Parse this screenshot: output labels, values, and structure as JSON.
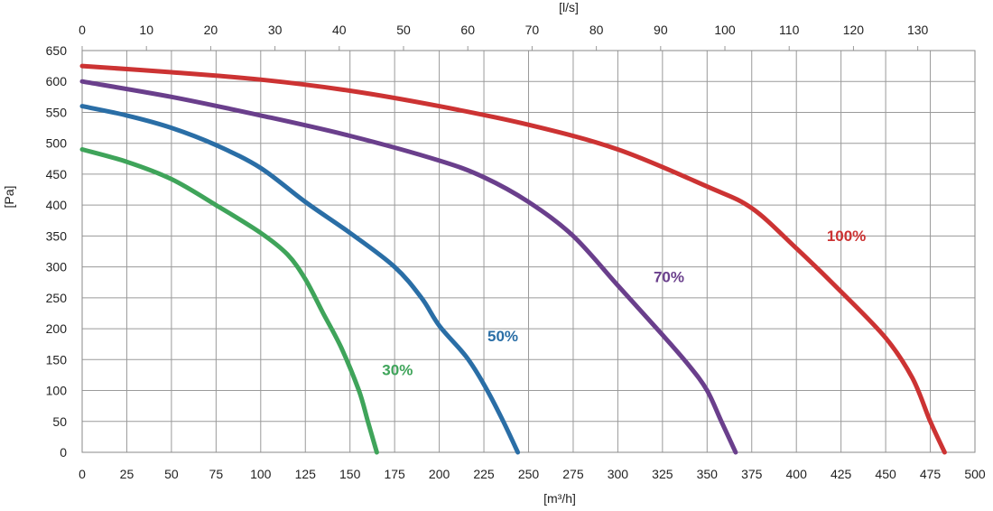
{
  "chart_data": {
    "type": "line",
    "xlabel": "[m³/h]",
    "x2label": "[l/s]",
    "ylabel": "[Pa]",
    "xlim": [
      0,
      500
    ],
    "x2lim": [
      0,
      138.9
    ],
    "ylim": [
      0,
      650
    ],
    "x_ticks": [
      0,
      25,
      50,
      75,
      100,
      125,
      150,
      175,
      200,
      225,
      250,
      275,
      300,
      325,
      350,
      375,
      400,
      425,
      450,
      475,
      500
    ],
    "x2_ticks": [
      0,
      10,
      20,
      30,
      40,
      50,
      60,
      70,
      80,
      90,
      100,
      110,
      120,
      130
    ],
    "y_ticks": [
      0,
      50,
      100,
      150,
      200,
      250,
      300,
      350,
      400,
      450,
      500,
      550,
      600,
      650
    ],
    "grid": true,
    "series": [
      {
        "name": "30%",
        "color": "#3fa45a",
        "points": [
          [
            0,
            490
          ],
          [
            25,
            470
          ],
          [
            50,
            442
          ],
          [
            75,
            400
          ],
          [
            100,
            355
          ],
          [
            115,
            320
          ],
          [
            125,
            280
          ],
          [
            135,
            225
          ],
          [
            145,
            170
          ],
          [
            155,
            100
          ],
          [
            160,
            50
          ],
          [
            165,
            0
          ]
        ]
      },
      {
        "name": "50%",
        "color": "#2a6ea6",
        "points": [
          [
            0,
            560
          ],
          [
            25,
            545
          ],
          [
            50,
            525
          ],
          [
            75,
            497
          ],
          [
            100,
            460
          ],
          [
            125,
            405
          ],
          [
            150,
            355
          ],
          [
            175,
            300
          ],
          [
            190,
            250
          ],
          [
            200,
            205
          ],
          [
            215,
            155
          ],
          [
            225,
            110
          ],
          [
            235,
            55
          ],
          [
            244,
            0
          ]
        ]
      },
      {
        "name": "70%",
        "color": "#6a3f8c",
        "points": [
          [
            0,
            600
          ],
          [
            50,
            575
          ],
          [
            100,
            545
          ],
          [
            150,
            512
          ],
          [
            200,
            472
          ],
          [
            225,
            445
          ],
          [
            250,
            405
          ],
          [
            275,
            350
          ],
          [
            300,
            270
          ],
          [
            325,
            190
          ],
          [
            340,
            140
          ],
          [
            350,
            100
          ],
          [
            358,
            50
          ],
          [
            366,
            0
          ]
        ]
      },
      {
        "name": "100%",
        "color": "#cc3333",
        "points": [
          [
            0,
            625
          ],
          [
            50,
            615
          ],
          [
            100,
            603
          ],
          [
            150,
            585
          ],
          [
            200,
            560
          ],
          [
            250,
            530
          ],
          [
            300,
            490
          ],
          [
            350,
            430
          ],
          [
            375,
            395
          ],
          [
            400,
            330
          ],
          [
            425,
            260
          ],
          [
            450,
            185
          ],
          [
            465,
            120
          ],
          [
            475,
            50
          ],
          [
            483,
            0
          ]
        ]
      }
    ],
    "labels": [
      {
        "text": "30%",
        "x": 168,
        "y": 125,
        "color": "#3fa45a"
      },
      {
        "text": "50%",
        "x": 227,
        "y": 180,
        "color": "#2a6ea6"
      },
      {
        "text": "70%",
        "x": 320,
        "y": 275,
        "color": "#6a3f8c"
      },
      {
        "text": "100%",
        "x": 417,
        "y": 342,
        "color": "#cc3333"
      }
    ]
  }
}
